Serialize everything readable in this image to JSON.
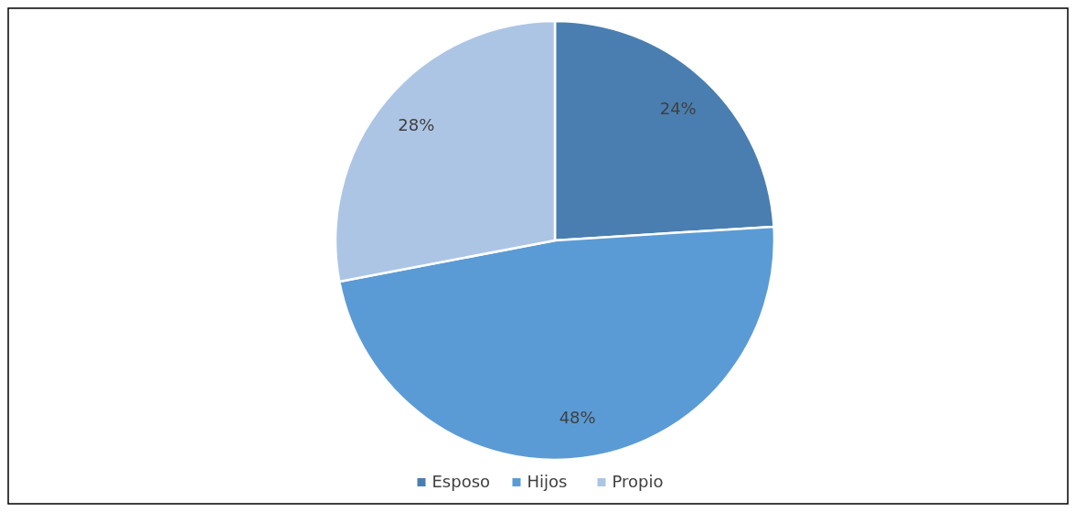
{
  "chart_data": {
    "type": "pie",
    "categories": [
      "Esposo",
      "Hijos",
      "Propio"
    ],
    "values": [
      24,
      48,
      28
    ],
    "colors": [
      "#4a7eb0",
      "#5b9bd5",
      "#adc5e5"
    ],
    "value_labels": [
      "24%",
      "48%",
      "28%"
    ],
    "legend": "bottom"
  }
}
